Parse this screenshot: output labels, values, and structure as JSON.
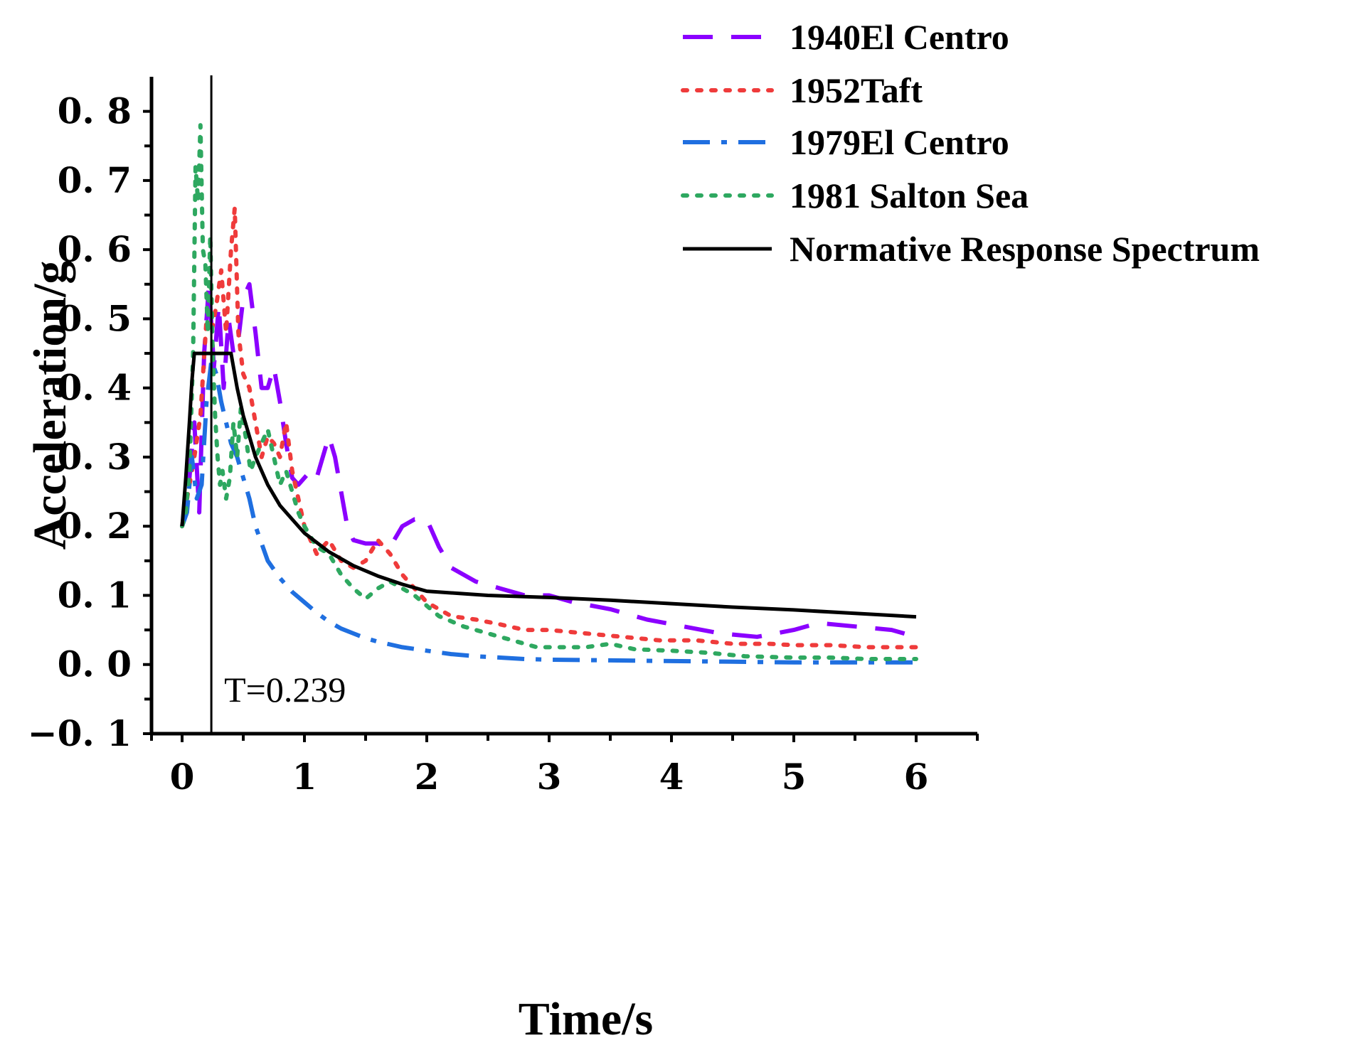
{
  "chart_data": {
    "type": "line",
    "title": "",
    "xlabel": "Time/s",
    "ylabel": "Acceleration/g",
    "xlim": [
      -0.25,
      6.5
    ],
    "ylim": [
      -0.1,
      0.85
    ],
    "x_ticks": [
      0,
      1,
      2,
      3,
      4,
      5,
      6
    ],
    "x_tick_labels": [
      "0",
      "1",
      "2",
      "3",
      "4",
      "5",
      "6"
    ],
    "y_ticks": [
      -0.1,
      0.0,
      0.1,
      0.2,
      0.3,
      0.4,
      0.5,
      0.6,
      0.7,
      0.8
    ],
    "y_tick_labels": [
      "−0. 1",
      "0. 0",
      "0. 1",
      "0. 2",
      "0. 3",
      "0. 4",
      "0. 5",
      "0. 6",
      "0. 7",
      "0. 8"
    ],
    "grid": false,
    "legend_position": "top-right",
    "annotation": {
      "x": 0.239,
      "text": "T=0.239"
    },
    "series": [
      {
        "name": "1940El Centro",
        "color": "#8b00ff",
        "style": "dash",
        "x": [
          0,
          0.05,
          0.1,
          0.14,
          0.18,
          0.22,
          0.26,
          0.3,
          0.34,
          0.38,
          0.42,
          0.46,
          0.5,
          0.55,
          0.6,
          0.65,
          0.7,
          0.75,
          0.8,
          0.85,
          0.9,
          0.95,
          1.0,
          1.05,
          1.1,
          1.15,
          1.2,
          1.25,
          1.3,
          1.35,
          1.4,
          1.5,
          1.6,
          1.7,
          1.8,
          1.9,
          2.0,
          2.1,
          2.2,
          2.4,
          2.6,
          2.8,
          3.0,
          3.2,
          3.5,
          3.8,
          4.1,
          4.4,
          4.7,
          5.0,
          5.2,
          5.5,
          5.8,
          6.0
        ],
        "y": [
          0.2,
          0.25,
          0.35,
          0.22,
          0.45,
          0.55,
          0.43,
          0.52,
          0.4,
          0.5,
          0.45,
          0.47,
          0.53,
          0.55,
          0.48,
          0.4,
          0.4,
          0.43,
          0.38,
          0.32,
          0.27,
          0.26,
          0.27,
          0.28,
          0.27,
          0.3,
          0.33,
          0.3,
          0.25,
          0.2,
          0.18,
          0.175,
          0.175,
          0.17,
          0.2,
          0.21,
          0.21,
          0.17,
          0.14,
          0.12,
          0.11,
          0.1,
          0.1,
          0.09,
          0.08,
          0.065,
          0.055,
          0.045,
          0.04,
          0.05,
          0.06,
          0.055,
          0.05,
          0.04
        ]
      },
      {
        "name": "1952Taft",
        "color": "#ef3b3b",
        "style": "dot",
        "x": [
          0,
          0.05,
          0.1,
          0.15,
          0.2,
          0.24,
          0.28,
          0.32,
          0.36,
          0.4,
          0.43,
          0.46,
          0.5,
          0.55,
          0.6,
          0.65,
          0.7,
          0.75,
          0.8,
          0.85,
          0.9,
          1.0,
          1.1,
          1.2,
          1.3,
          1.4,
          1.5,
          1.6,
          1.7,
          1.8,
          1.9,
          2.0,
          2.1,
          2.2,
          2.4,
          2.6,
          2.8,
          3.0,
          3.3,
          3.6,
          3.9,
          4.2,
          4.5,
          4.8,
          5.0,
          5.3,
          5.6,
          6.0
        ],
        "y": [
          0.2,
          0.25,
          0.3,
          0.36,
          0.5,
          0.48,
          0.52,
          0.57,
          0.48,
          0.6,
          0.66,
          0.48,
          0.42,
          0.4,
          0.35,
          0.3,
          0.33,
          0.32,
          0.3,
          0.35,
          0.28,
          0.2,
          0.16,
          0.18,
          0.15,
          0.14,
          0.15,
          0.18,
          0.16,
          0.13,
          0.11,
          0.09,
          0.08,
          0.07,
          0.065,
          0.058,
          0.05,
          0.05,
          0.045,
          0.04,
          0.035,
          0.035,
          0.03,
          0.03,
          0.028,
          0.028,
          0.025,
          0.025
        ]
      },
      {
        "name": "1979El Centro",
        "color": "#1f6fe0",
        "style": "dashdot",
        "x": [
          0,
          0.04,
          0.08,
          0.12,
          0.16,
          0.2,
          0.24,
          0.28,
          0.32,
          0.36,
          0.4,
          0.45,
          0.5,
          0.55,
          0.6,
          0.7,
          0.8,
          0.9,
          1.0,
          1.1,
          1.2,
          1.3,
          1.4,
          1.5,
          1.6,
          1.8,
          2.0,
          2.2,
          2.4,
          2.6,
          2.8,
          3.0,
          3.5,
          4.0,
          4.5,
          5.0,
          5.5,
          6.0
        ],
        "y": [
          0.2,
          0.22,
          0.3,
          0.24,
          0.26,
          0.38,
          0.44,
          0.42,
          0.38,
          0.35,
          0.32,
          0.3,
          0.27,
          0.24,
          0.2,
          0.15,
          0.125,
          0.105,
          0.09,
          0.075,
          0.062,
          0.052,
          0.045,
          0.038,
          0.033,
          0.025,
          0.02,
          0.015,
          0.012,
          0.01,
          0.008,
          0.007,
          0.006,
          0.005,
          0.004,
          0.003,
          0.003,
          0.003
        ]
      },
      {
        "name": "1981 Salton Sea",
        "color": "#2ea860",
        "style": "dot",
        "x": [
          0,
          0.03,
          0.06,
          0.09,
          0.11,
          0.13,
          0.15,
          0.17,
          0.19,
          0.21,
          0.23,
          0.25,
          0.27,
          0.29,
          0.31,
          0.33,
          0.36,
          0.39,
          0.42,
          0.45,
          0.48,
          0.52,
          0.56,
          0.6,
          0.65,
          0.7,
          0.75,
          0.8,
          0.85,
          0.9,
          0.95,
          1.0,
          1.1,
          1.2,
          1.3,
          1.4,
          1.5,
          1.6,
          1.7,
          1.8,
          1.9,
          2.0,
          2.1,
          2.3,
          2.5,
          2.7,
          2.9,
          3.1,
          3.3,
          3.5,
          3.7,
          4.0,
          4.3,
          4.6,
          5.0,
          5.3,
          5.6,
          6.0
        ],
        "y": [
          0.2,
          0.22,
          0.28,
          0.45,
          0.72,
          0.67,
          0.78,
          0.6,
          0.58,
          0.48,
          0.62,
          0.45,
          0.36,
          0.3,
          0.26,
          0.28,
          0.24,
          0.27,
          0.35,
          0.3,
          0.37,
          0.33,
          0.28,
          0.3,
          0.32,
          0.34,
          0.3,
          0.26,
          0.28,
          0.25,
          0.22,
          0.2,
          0.17,
          0.16,
          0.13,
          0.11,
          0.095,
          0.11,
          0.12,
          0.11,
          0.1,
          0.085,
          0.07,
          0.055,
          0.045,
          0.035,
          0.025,
          0.025,
          0.025,
          0.03,
          0.022,
          0.02,
          0.017,
          0.012,
          0.01,
          0.01,
          0.008,
          0.008
        ]
      },
      {
        "name": "Normative Response Spectrum",
        "color": "#000000",
        "style": "solid",
        "x": [
          0,
          0.03,
          0.06,
          0.08,
          0.1,
          0.2,
          0.3,
          0.4,
          0.45,
          0.5,
          0.6,
          0.7,
          0.8,
          0.9,
          1.0,
          1.2,
          1.4,
          1.6,
          1.8,
          2.0,
          2.5,
          3.0,
          3.5,
          4.0,
          4.5,
          5.0,
          5.5,
          6.0
        ],
        "y": [
          0.2,
          0.27,
          0.35,
          0.41,
          0.45,
          0.45,
          0.45,
          0.45,
          0.4,
          0.36,
          0.3,
          0.26,
          0.23,
          0.21,
          0.19,
          0.163,
          0.143,
          0.128,
          0.116,
          0.106,
          0.1,
          0.097,
          0.093,
          0.088,
          0.083,
          0.079,
          0.074,
          0.069
        ]
      }
    ]
  }
}
